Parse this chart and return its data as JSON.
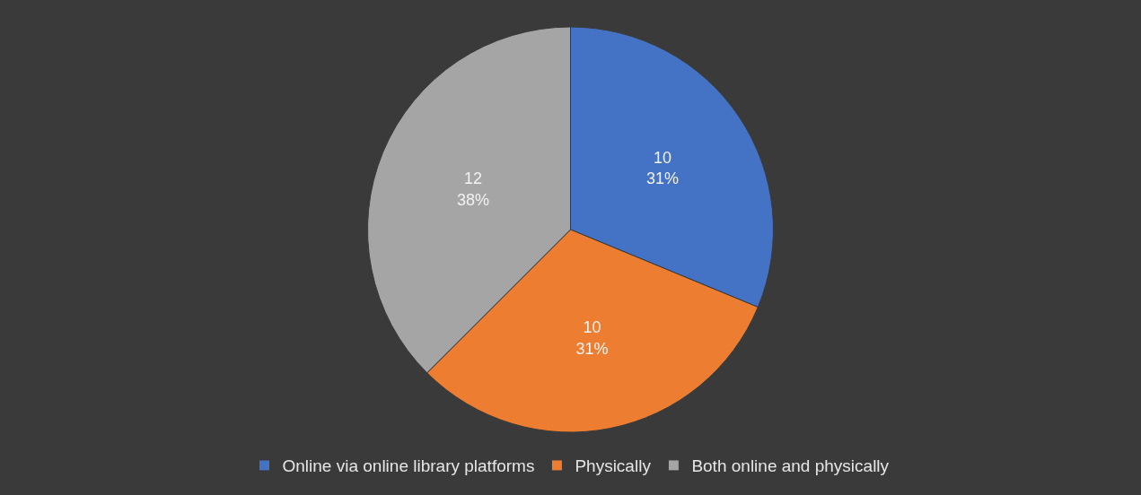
{
  "chart_data": {
    "type": "pie",
    "categories": [
      "Online via online library platforms",
      "Physically",
      "Both online and physically"
    ],
    "values": [
      10,
      10,
      12
    ],
    "colors": [
      "#4472c4",
      "#ed7d31",
      "#a5a5a5"
    ],
    "value_labels": [
      "10\n31%",
      "10\n31%",
      "12\n38%"
    ],
    "legend": "bottom"
  }
}
